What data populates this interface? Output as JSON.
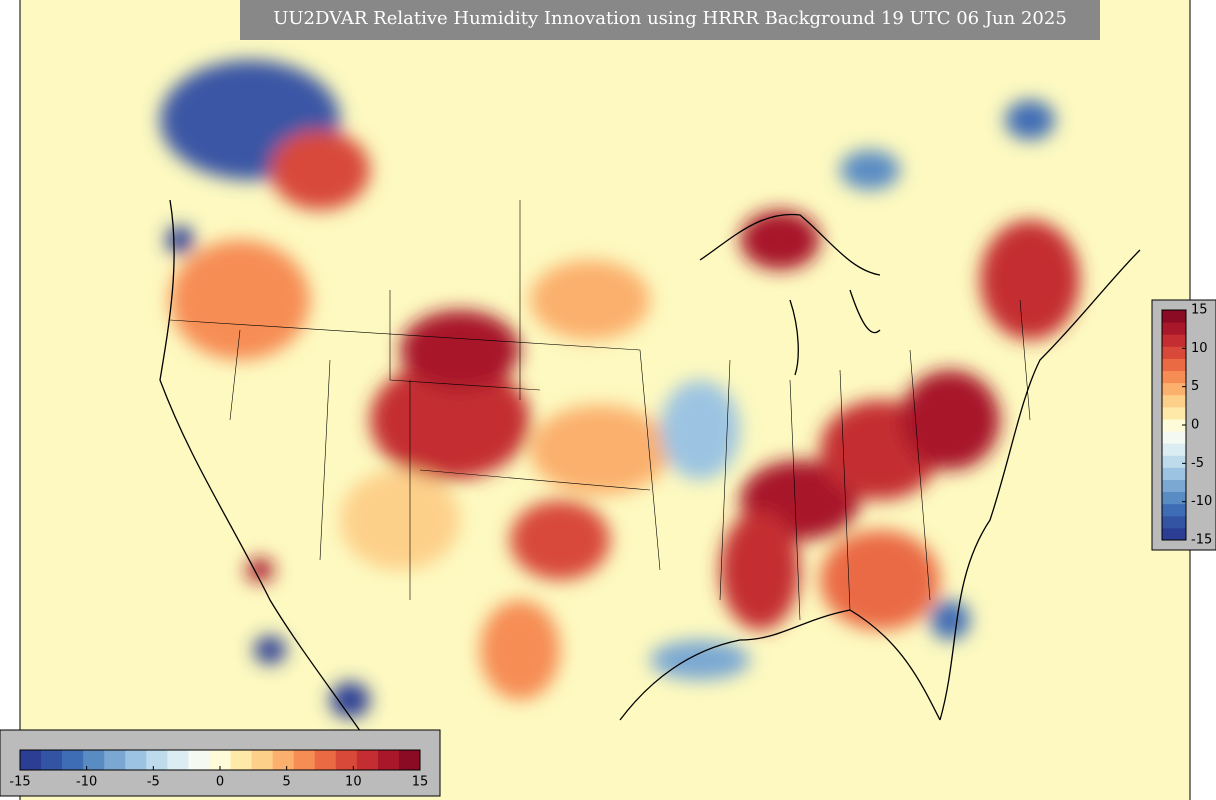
{
  "header": {
    "title": "UU2DVAR Relative Humidity Innovation using HRRR Background 19 UTC 06 Jun 2025"
  },
  "colorbars": [
    {
      "orientation": "horizontal",
      "lim": [
        -15,
        15
      ],
      "ticks": [
        -15,
        -10,
        -5,
        0,
        5,
        10,
        15
      ],
      "colors": [
        "#2c3e94",
        "#3354a3",
        "#3f6db5",
        "#5a8cc4",
        "#7aa8d3",
        "#9cc4e2",
        "#bddbeb",
        "#dcecf3",
        "#f4f9f2",
        "#fefcd8",
        "#fee9a8",
        "#fdd08a",
        "#fbb06d",
        "#f68d55",
        "#ea6a44",
        "#d8493a",
        "#c42d31",
        "#a8172a",
        "#8b0a24"
      ]
    },
    {
      "orientation": "vertical",
      "lim": [
        -15,
        15
      ],
      "ticks": [
        -15,
        -10,
        -5,
        0,
        5,
        10,
        15
      ],
      "colors": [
        "#2c3e94",
        "#3354a3",
        "#3f6db5",
        "#5a8cc4",
        "#7aa8d3",
        "#9cc4e2",
        "#bddbeb",
        "#dcecf3",
        "#f4f9f2",
        "#fefcd8",
        "#fee9a8",
        "#fdd08a",
        "#fbb06d",
        "#f68d55",
        "#ea6a44",
        "#d8493a",
        "#c42d31",
        "#a8172a",
        "#8b0a24"
      ]
    }
  ]
}
